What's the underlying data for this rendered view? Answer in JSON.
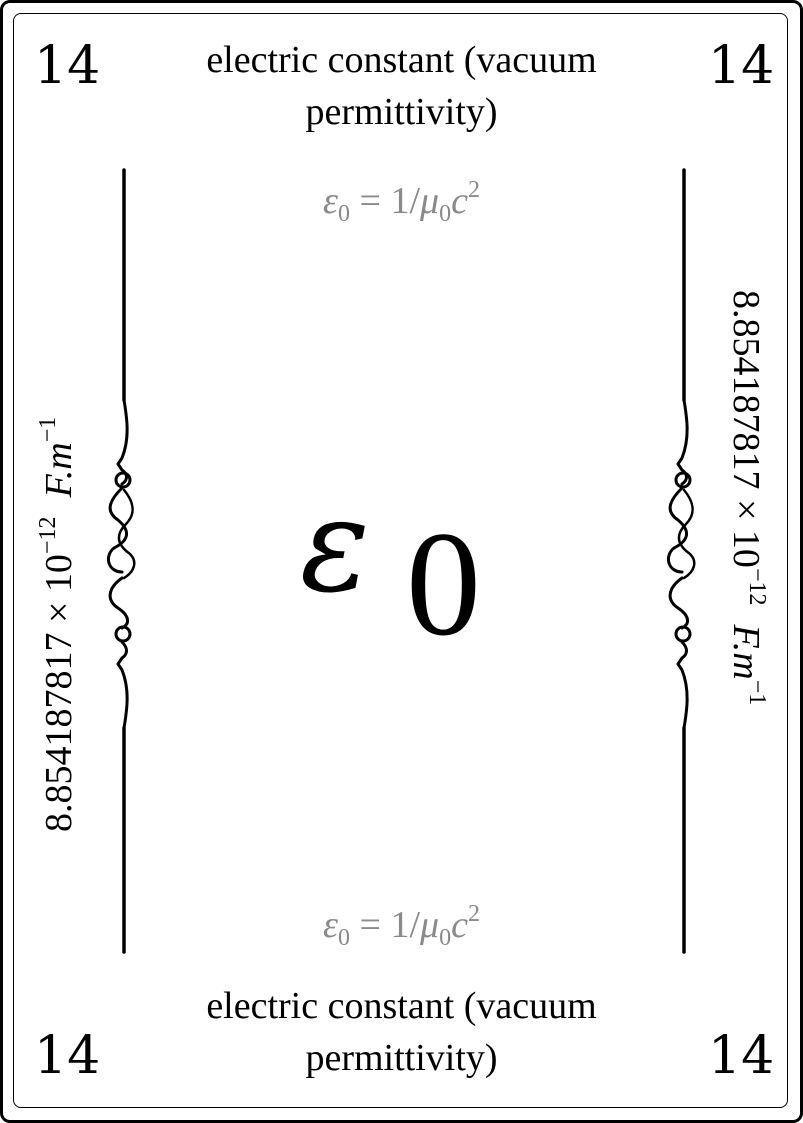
{
  "card": {
    "number": "14",
    "name": "electric constant (vacuum permittivity)",
    "formula": {
      "lhs": "ε",
      "lhs_sub": "0",
      "eq": " = 1/",
      "mu": "μ",
      "mu_sub": "0",
      "c": "c",
      "c_sup": "2"
    },
    "value": {
      "mantissa": "8.854187817 × 10",
      "exponent": "−12",
      "unit": "F.m",
      "unit_exponent": "−1"
    },
    "symbol": {
      "letter": "ε",
      "subscript": "0"
    }
  }
}
